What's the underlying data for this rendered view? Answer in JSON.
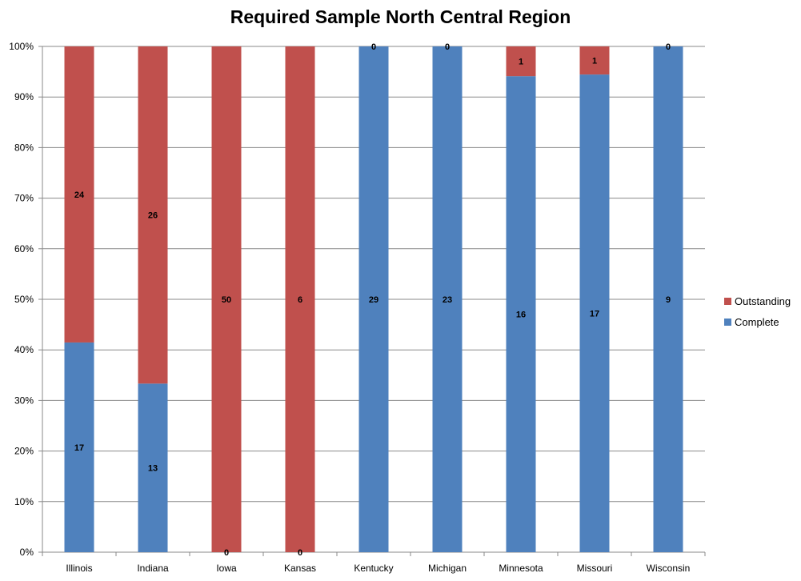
{
  "chart_data": {
    "type": "bar",
    "stacked": "percent",
    "title": "Required Sample North Central Region",
    "xlabel": "",
    "ylabel": "",
    "categories": [
      "Illinois",
      "Indiana",
      "Iowa",
      "Kansas",
      "Kentucky",
      "Michigan",
      "Minnesota",
      "Missouri",
      "Wisconsin"
    ],
    "series": [
      {
        "name": "Complete",
        "color": "#4F81BD",
        "values": [
          17,
          13,
          0,
          0,
          29,
          23,
          16,
          17,
          9
        ]
      },
      {
        "name": "Outstanding",
        "color": "#C0504D",
        "values": [
          24,
          26,
          50,
          6,
          0,
          0,
          1,
          1,
          0
        ]
      }
    ],
    "yticks": [
      "0%",
      "10%",
      "20%",
      "30%",
      "40%",
      "50%",
      "60%",
      "70%",
      "80%",
      "90%",
      "100%"
    ],
    "ylim": [
      0,
      100
    ],
    "grid": true,
    "legend_position": "right",
    "legend_order": [
      "Outstanding",
      "Complete"
    ]
  }
}
